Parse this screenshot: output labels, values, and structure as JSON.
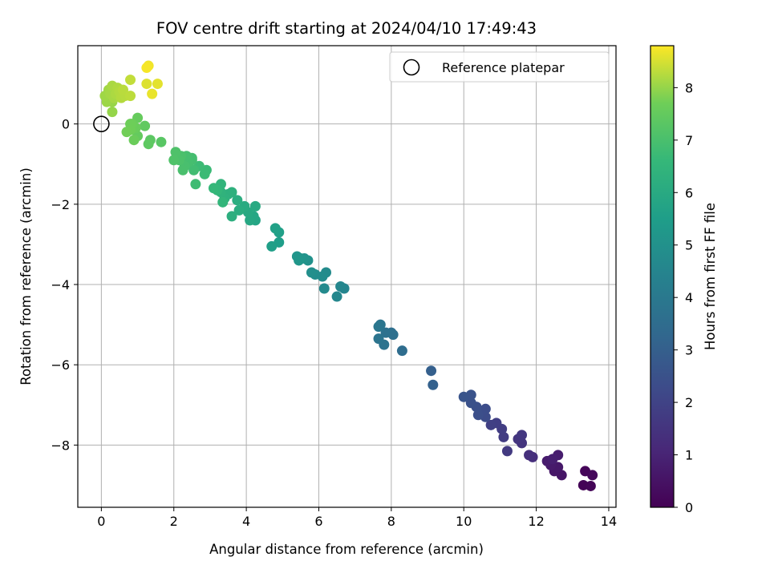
{
  "chart_data": {
    "type": "scatter",
    "title": "FOV centre drift starting at 2024/04/10 17:49:43",
    "xlabel": "Angular distance from reference (arcmin)",
    "ylabel": "Rotation from reference (arcmin)",
    "xlim": [
      -0.65,
      14.2
    ],
    "ylim": [
      -9.55,
      1.95
    ],
    "xticks": [
      0,
      2,
      4,
      6,
      8,
      10,
      12,
      14
    ],
    "yticks": [
      0,
      -2,
      -4,
      -6,
      -8
    ],
    "grid": true,
    "legend": {
      "placement": "top-right",
      "label": "Reference platepar",
      "marker": "open-circle"
    },
    "reference_point": {
      "x": 0,
      "y": 0
    },
    "colorbar": {
      "label": "Hours from first FF file",
      "colormap": "viridis",
      "range": [
        0,
        8.8
      ],
      "ticks": [
        0,
        1,
        2,
        3,
        4,
        5,
        6,
        7,
        8
      ]
    },
    "points": [
      {
        "x": 13.3,
        "y": -9.0,
        "c": 0.05
      },
      {
        "x": 13.5,
        "y": -9.02,
        "c": 0.1
      },
      {
        "x": 13.35,
        "y": -8.65,
        "c": 0.15
      },
      {
        "x": 13.55,
        "y": -8.75,
        "c": 0.2
      },
      {
        "x": 12.7,
        "y": -8.75,
        "c": 0.55
      },
      {
        "x": 12.5,
        "y": -8.65,
        "c": 0.6
      },
      {
        "x": 12.6,
        "y": -8.55,
        "c": 0.65
      },
      {
        "x": 12.4,
        "y": -8.5,
        "c": 0.7
      },
      {
        "x": 12.3,
        "y": -8.4,
        "c": 0.75
      },
      {
        "x": 12.6,
        "y": -8.25,
        "c": 0.8
      },
      {
        "x": 12.45,
        "y": -8.35,
        "c": 0.85
      },
      {
        "x": 11.9,
        "y": -8.3,
        "c": 1.3
      },
      {
        "x": 11.8,
        "y": -8.25,
        "c": 1.35
      },
      {
        "x": 11.6,
        "y": -7.95,
        "c": 1.5
      },
      {
        "x": 11.5,
        "y": -7.85,
        "c": 1.55
      },
      {
        "x": 11.6,
        "y": -7.75,
        "c": 1.6
      },
      {
        "x": 11.2,
        "y": -8.15,
        "c": 1.7
      },
      {
        "x": 11.1,
        "y": -7.8,
        "c": 1.75
      },
      {
        "x": 11.05,
        "y": -7.6,
        "c": 1.8
      },
      {
        "x": 10.9,
        "y": -7.45,
        "c": 1.85
      },
      {
        "x": 10.75,
        "y": -7.5,
        "c": 1.9
      },
      {
        "x": 10.6,
        "y": -7.3,
        "c": 2.3
      },
      {
        "x": 10.6,
        "y": -7.1,
        "c": 2.35
      },
      {
        "x": 10.4,
        "y": -7.25,
        "c": 2.4
      },
      {
        "x": 10.35,
        "y": -7.05,
        "c": 2.45
      },
      {
        "x": 10.2,
        "y": -6.95,
        "c": 2.5
      },
      {
        "x": 10.2,
        "y": -6.75,
        "c": 2.55
      },
      {
        "x": 10.0,
        "y": -6.8,
        "c": 2.6
      },
      {
        "x": 9.1,
        "y": -6.15,
        "c": 3.0
      },
      {
        "x": 9.15,
        "y": -6.5,
        "c": 3.05
      },
      {
        "x": 8.3,
        "y": -5.65,
        "c": 3.5
      },
      {
        "x": 8.0,
        "y": -5.2,
        "c": 3.6
      },
      {
        "x": 8.05,
        "y": -5.25,
        "c": 3.65
      },
      {
        "x": 7.85,
        "y": -5.2,
        "c": 3.7
      },
      {
        "x": 7.8,
        "y": -5.5,
        "c": 3.75
      },
      {
        "x": 7.65,
        "y": -5.35,
        "c": 3.8
      },
      {
        "x": 7.7,
        "y": -5.0,
        "c": 3.85
      },
      {
        "x": 7.65,
        "y": -5.05,
        "c": 3.9
      },
      {
        "x": 6.7,
        "y": -4.1,
        "c": 4.5
      },
      {
        "x": 6.6,
        "y": -4.05,
        "c": 4.55
      },
      {
        "x": 6.5,
        "y": -4.3,
        "c": 4.6
      },
      {
        "x": 6.15,
        "y": -4.1,
        "c": 4.7
      },
      {
        "x": 6.2,
        "y": -3.7,
        "c": 4.75
      },
      {
        "x": 6.1,
        "y": -3.8,
        "c": 4.8
      },
      {
        "x": 5.9,
        "y": -3.75,
        "c": 4.85
      },
      {
        "x": 5.8,
        "y": -3.7,
        "c": 4.9
      },
      {
        "x": 5.7,
        "y": -3.4,
        "c": 5.0
      },
      {
        "x": 5.6,
        "y": -3.35,
        "c": 5.05
      },
      {
        "x": 5.5,
        "y": -3.35,
        "c": 5.1
      },
      {
        "x": 5.4,
        "y": -3.3,
        "c": 5.15
      },
      {
        "x": 5.45,
        "y": -3.4,
        "c": 5.2
      },
      {
        "x": 4.9,
        "y": -2.95,
        "c": 5.5
      },
      {
        "x": 4.7,
        "y": -3.05,
        "c": 5.55
      },
      {
        "x": 4.9,
        "y": -2.7,
        "c": 5.6
      },
      {
        "x": 4.8,
        "y": -2.6,
        "c": 5.65
      },
      {
        "x": 4.25,
        "y": -2.4,
        "c": 5.8
      },
      {
        "x": 4.2,
        "y": -2.3,
        "c": 5.85
      },
      {
        "x": 4.1,
        "y": -2.4,
        "c": 5.9
      },
      {
        "x": 4.05,
        "y": -2.2,
        "c": 5.95
      },
      {
        "x": 4.25,
        "y": -2.05,
        "c": 6.0
      },
      {
        "x": 3.95,
        "y": -2.05,
        "c": 6.05
      },
      {
        "x": 3.8,
        "y": -2.15,
        "c": 6.1
      },
      {
        "x": 3.75,
        "y": -1.9,
        "c": 6.15
      },
      {
        "x": 3.6,
        "y": -2.3,
        "c": 6.2
      },
      {
        "x": 3.5,
        "y": -1.75,
        "c": 6.25
      },
      {
        "x": 3.6,
        "y": -1.7,
        "c": 6.3
      },
      {
        "x": 3.4,
        "y": -1.85,
        "c": 6.35
      },
      {
        "x": 3.3,
        "y": -1.7,
        "c": 6.4
      },
      {
        "x": 3.3,
        "y": -1.5,
        "c": 6.45
      },
      {
        "x": 3.35,
        "y": -1.95,
        "c": 6.5
      },
      {
        "x": 3.2,
        "y": -1.65,
        "c": 6.55
      },
      {
        "x": 3.1,
        "y": -1.6,
        "c": 6.6
      },
      {
        "x": 2.9,
        "y": -1.15,
        "c": 6.7
      },
      {
        "x": 2.85,
        "y": -1.25,
        "c": 6.72
      },
      {
        "x": 2.7,
        "y": -1.05,
        "c": 6.75
      },
      {
        "x": 2.6,
        "y": -1.5,
        "c": 6.8
      },
      {
        "x": 2.55,
        "y": -1.15,
        "c": 6.85
      },
      {
        "x": 2.5,
        "y": -0.9,
        "c": 6.88
      },
      {
        "x": 2.5,
        "y": -0.85,
        "c": 6.9
      },
      {
        "x": 2.4,
        "y": -0.95,
        "c": 6.93
      },
      {
        "x": 2.35,
        "y": -0.8,
        "c": 6.95
      },
      {
        "x": 2.3,
        "y": -1.05,
        "c": 6.98
      },
      {
        "x": 2.25,
        "y": -1.15,
        "c": 7.0
      },
      {
        "x": 2.2,
        "y": -0.8,
        "c": 7.03
      },
      {
        "x": 2.15,
        "y": -0.9,
        "c": 7.06
      },
      {
        "x": 2.05,
        "y": -0.7,
        "c": 7.1
      },
      {
        "x": 2.0,
        "y": -0.9,
        "c": 7.12
      },
      {
        "x": 1.65,
        "y": -0.45,
        "c": 7.3
      },
      {
        "x": 1.35,
        "y": -0.4,
        "c": 7.35
      },
      {
        "x": 1.3,
        "y": -0.5,
        "c": 7.4
      },
      {
        "x": 1.2,
        "y": -0.05,
        "c": 7.45
      },
      {
        "x": 1.0,
        "y": -0.3,
        "c": 7.5
      },
      {
        "x": 1.0,
        "y": 0.15,
        "c": 7.55
      },
      {
        "x": 0.95,
        "y": -0.1,
        "c": 7.6
      },
      {
        "x": 0.9,
        "y": -0.4,
        "c": 7.62
      },
      {
        "x": 0.85,
        "y": 0.0,
        "c": 7.65
      },
      {
        "x": 0.8,
        "y": 0.0,
        "c": 7.68
      },
      {
        "x": 0.8,
        "y": -0.15,
        "c": 7.7
      },
      {
        "x": 0.7,
        "y": -0.2,
        "c": 7.72
      },
      {
        "x": 0.3,
        "y": 0.3,
        "c": 8.0
      },
      {
        "x": 0.3,
        "y": 0.55,
        "c": 8.02
      },
      {
        "x": 0.15,
        "y": 0.55,
        "c": 8.05
      },
      {
        "x": 0.1,
        "y": 0.7,
        "c": 8.08
      },
      {
        "x": 0.2,
        "y": 0.85,
        "c": 8.1
      },
      {
        "x": 0.25,
        "y": 0.75,
        "c": 8.12
      },
      {
        "x": 0.35,
        "y": 0.65,
        "c": 8.14
      },
      {
        "x": 0.3,
        "y": 0.95,
        "c": 8.16
      },
      {
        "x": 0.4,
        "y": 0.75,
        "c": 8.18
      },
      {
        "x": 0.45,
        "y": 0.9,
        "c": 8.2
      },
      {
        "x": 0.5,
        "y": 0.8,
        "c": 8.22
      },
      {
        "x": 0.55,
        "y": 0.65,
        "c": 8.24
      },
      {
        "x": 0.65,
        "y": 0.7,
        "c": 8.26
      },
      {
        "x": 0.6,
        "y": 0.85,
        "c": 8.28
      },
      {
        "x": 0.8,
        "y": 0.7,
        "c": 8.3
      },
      {
        "x": 0.8,
        "y": 1.1,
        "c": 8.35
      },
      {
        "x": 1.25,
        "y": 1.0,
        "c": 8.55
      },
      {
        "x": 1.55,
        "y": 1.0,
        "c": 8.6
      },
      {
        "x": 1.4,
        "y": 0.75,
        "c": 8.65
      },
      {
        "x": 1.3,
        "y": 1.45,
        "c": 8.7
      },
      {
        "x": 1.25,
        "y": 1.4,
        "c": 8.75
      }
    ]
  }
}
